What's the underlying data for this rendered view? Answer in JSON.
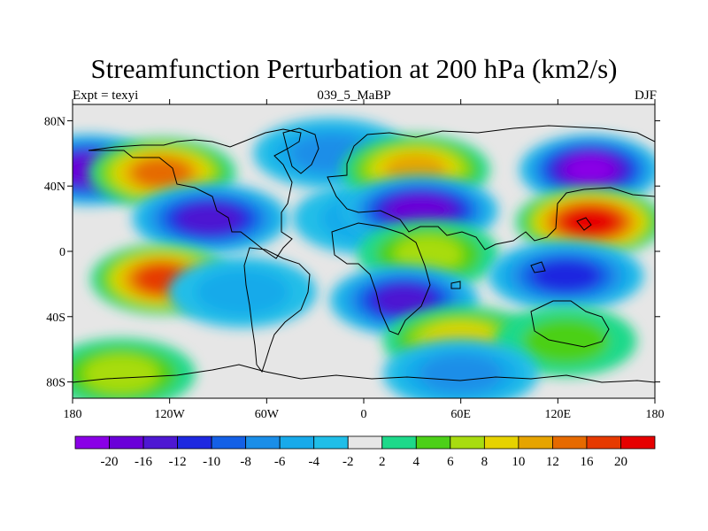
{
  "title": "Streamfunction Perturbation at 200 hPa (km2/s)",
  "subtitle_left": "Expt = texyi",
  "subtitle_center": "039_5_MaBP",
  "subtitle_right": "DJF",
  "x_tick_labels": [
    "180",
    "120W",
    "60W",
    "0",
    "60E",
    "120E",
    "180"
  ],
  "y_tick_labels": [
    "80N",
    "40N",
    "0",
    "40S",
    "80S"
  ],
  "colorbar": {
    "levels": [
      "-20",
      "-16",
      "-12",
      "-10",
      "-8",
      "-6",
      "-4",
      "-2",
      "2",
      "4",
      "6",
      "8",
      "10",
      "12",
      "16",
      "20"
    ],
    "colors": [
      "#8a00e6",
      "#6a00d8",
      "#4e18d2",
      "#1e28e0",
      "#1460e6",
      "#1a8ee8",
      "#18aaea",
      "#20bee8",
      "#e6e6e6",
      "#1ed98a",
      "#4cd018",
      "#a8dc10",
      "#e6d200",
      "#e6a400",
      "#e66a00",
      "#e63a00",
      "#e60000"
    ]
  },
  "chart_data": {
    "type": "heatmap",
    "x_range_deg_lon": [
      -180,
      180
    ],
    "y_range_deg_lat": [
      -90,
      90
    ],
    "contour_levels": [
      -20,
      -16,
      -12,
      -10,
      -8,
      -6,
      -4,
      -2,
      2,
      4,
      6,
      8,
      10,
      12,
      16,
      20
    ],
    "features": [
      {
        "lon": -170,
        "lat": 50,
        "value": -18
      },
      {
        "lon": -125,
        "lat": 48,
        "value": 14
      },
      {
        "lon": -95,
        "lat": 20,
        "value": -14
      },
      {
        "lon": -125,
        "lat": -17,
        "value": 16
      },
      {
        "lon": -75,
        "lat": -25,
        "value": -4
      },
      {
        "lon": -20,
        "lat": 60,
        "value": -6
      },
      {
        "lon": 0,
        "lat": 20,
        "value": -5
      },
      {
        "lon": 32,
        "lat": 50,
        "value": 11
      },
      {
        "lon": 35,
        "lat": 25,
        "value": -16
      },
      {
        "lon": 40,
        "lat": -2,
        "value": 7
      },
      {
        "lon": 25,
        "lat": -30,
        "value": -12
      },
      {
        "lon": 60,
        "lat": -55,
        "value": 9
      },
      {
        "lon": 140,
        "lat": 50,
        "value": -20
      },
      {
        "lon": 140,
        "lat": 18,
        "value": 20
      },
      {
        "lon": 125,
        "lat": -15,
        "value": -10
      },
      {
        "lon": 125,
        "lat": -55,
        "value": 5
      },
      {
        "lon": -150,
        "lat": -75,
        "value": 6
      },
      {
        "lon": 60,
        "lat": -75,
        "value": -6
      }
    ],
    "grid": false
  }
}
